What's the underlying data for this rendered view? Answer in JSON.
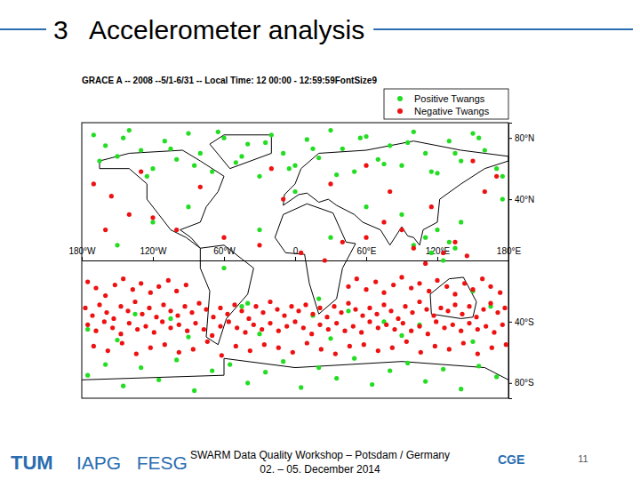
{
  "slide": {
    "title": "3   Accelerometer analysis",
    "logo_left": "TUM",
    "institutes": "IAPG   FESG",
    "footer": [
      "SWARM Data Quality Workshop – Potsdam / Germany",
      "02. – 05. December 2014"
    ],
    "logo_right": "CGE",
    "page": "11"
  },
  "chart_data": {
    "type": "scatter",
    "title": "GRACE A -- 2008 --5/1-6/31 -- Local Time: 12 00:00 - 12:59:59FontSize9",
    "xlim": [
      -180,
      180
    ],
    "ylim": [
      -90,
      90
    ],
    "xticks": [
      {
        "value": -180,
        "label": "180°W"
      },
      {
        "value": -120,
        "label": "120°W"
      },
      {
        "value": -60,
        "label": "60°W"
      },
      0,
      {
        "value": 60,
        "label": "60°E"
      },
      {
        "value": 120,
        "label": "120°E"
      },
      {
        "value": 180,
        "label": "180°E"
      }
    ],
    "yticks": [
      {
        "value": 80,
        "label": "80°N"
      },
      {
        "value": 40,
        "label": "40°N"
      },
      {
        "value": -40,
        "label": "40°S"
      },
      {
        "value": -80,
        "label": "80°S"
      }
    ],
    "legend": "top-right",
    "marker": "circle",
    "series": [
      {
        "name": "Positive Twangs",
        "color": "#22dd22",
        "x": [
          -170,
          -160,
          -150,
          -140,
          -130,
          -120,
          -110,
          -100,
          -90,
          -80,
          -70,
          -60,
          -50,
          -40,
          -30,
          -20,
          -10,
          0,
          10,
          20,
          30,
          40,
          50,
          60,
          70,
          80,
          90,
          100,
          110,
          120,
          130,
          140,
          150,
          160,
          170,
          -165,
          -145,
          -125,
          -105,
          -85,
          -65,
          -45,
          -25,
          -5,
          15,
          35,
          55,
          75,
          95,
          115,
          135,
          155,
          175,
          -175,
          -160,
          -145,
          -130,
          -115,
          -100,
          -85,
          -70,
          -55,
          -40,
          -25,
          -10,
          5,
          20,
          35,
          50,
          65,
          80,
          95,
          110,
          125,
          140,
          155,
          170,
          -150,
          -90,
          -30,
          30,
          90,
          150,
          -150,
          -120,
          -90,
          -60,
          -30,
          0,
          30,
          60,
          90,
          100,
          110,
          115,
          120,
          125,
          130,
          135,
          140,
          -135,
          -105,
          -45,
          15,
          45,
          75,
          105,
          165,
          -175,
          -40,
          20,
          150,
          175
        ],
        "values": [
          82,
          75,
          68,
          85,
          72,
          60,
          78,
          66,
          83,
          70,
          58,
          80,
          64,
          76,
          55,
          82,
          70,
          62,
          79,
          67,
          85,
          73,
          58,
          81,
          66,
          75,
          62,
          84,
          70,
          57,
          78,
          65,
          83,
          72,
          60,
          65,
          80,
          55,
          73,
          62,
          84,
          68,
          77,
          60,
          73,
          56,
          80,
          63,
          77,
          58,
          70,
          80,
          55,
          -75,
          -68,
          -82,
          -70,
          -78,
          -65,
          -85,
          -72,
          -68,
          -80,
          -73,
          -66,
          -83,
          -70,
          -77,
          -64,
          -81,
          -72,
          -67,
          -79,
          -71,
          -84,
          -69,
          -76,
          -52,
          -50,
          -48,
          -51,
          -49,
          -53,
          10,
          25,
          35,
          -5,
          20,
          45,
          15,
          35,
          30,
          10,
          15,
          5,
          20,
          0,
          12,
          8,
          25,
          -35,
          -38,
          -30,
          -36,
          -33,
          -40,
          -42,
          -30,
          -45,
          -28,
          -25,
          -20,
          40
        ]
      },
      {
        "name": "Negative Twangs",
        "color": "#ee1111",
        "x": [
          -177,
          -171,
          -165,
          -159,
          -153,
          -147,
          -141,
          -135,
          -129,
          -123,
          -117,
          -111,
          -105,
          -99,
          -93,
          -87,
          -81,
          -75,
          -69,
          -63,
          -57,
          -51,
          -45,
          -39,
          -33,
          -27,
          -21,
          -15,
          -9,
          -3,
          3,
          9,
          15,
          21,
          27,
          33,
          39,
          45,
          51,
          57,
          63,
          69,
          75,
          81,
          87,
          93,
          99,
          105,
          111,
          117,
          123,
          129,
          135,
          141,
          147,
          153,
          159,
          165,
          171,
          177,
          -175,
          -168,
          -161,
          -154,
          -147,
          -140,
          -133,
          -126,
          -119,
          -112,
          -105,
          -98,
          -91,
          -84,
          -77,
          -70,
          -63,
          -56,
          -49,
          -42,
          -35,
          -28,
          -21,
          -14,
          -7,
          0,
          7,
          14,
          21,
          28,
          35,
          42,
          49,
          56,
          63,
          70,
          77,
          84,
          91,
          98,
          105,
          112,
          119,
          126,
          133,
          140,
          147,
          154,
          161,
          168,
          175,
          45,
          52,
          60,
          68,
          75,
          83,
          90,
          98,
          105,
          113,
          120,
          128,
          135,
          143,
          150,
          158,
          165,
          173,
          -175,
          -168,
          -160,
          -152,
          -145,
          -137,
          -130,
          -122,
          -115,
          -107,
          -100,
          -92,
          -170,
          -158,
          -146,
          -134,
          -122,
          -110,
          -98,
          -86,
          -74,
          -62,
          -50,
          -38,
          -26,
          -14,
          -2,
          10,
          22,
          34,
          46,
          58,
          70,
          82,
          94,
          106,
          118,
          130,
          142,
          154,
          166,
          178,
          160,
          170,
          -170,
          -155,
          -140,
          -120,
          -100,
          -60,
          -30,
          5,
          25,
          40,
          60,
          75,
          90,
          100,
          110,
          125,
          135,
          145,
          60,
          -20,
          -80,
          -10,
          30,
          115,
          -130,
          80,
          150,
          -160
        ],
        "values": [
          -31,
          -36,
          -29,
          -34,
          -38,
          -30,
          -33,
          -27,
          -35,
          -31,
          -37,
          -29,
          -33,
          -36,
          -30,
          -34,
          -28,
          -32,
          -37,
          -31,
          -35,
          -29,
          -33,
          -38,
          -30,
          -34,
          -27,
          -32,
          -36,
          -30,
          -33,
          -29,
          -35,
          -31,
          -37,
          -30,
          -34,
          -28,
          -32,
          -36,
          -31,
          -35,
          -29,
          -33,
          -38,
          -30,
          -34,
          -27,
          -32,
          -36,
          -31,
          -33,
          -29,
          -35,
          -30,
          -37,
          -32,
          -28,
          -34,
          -31,
          -42,
          -46,
          -40,
          -44,
          -48,
          -41,
          -45,
          -43,
          -47,
          -40,
          -44,
          -42,
          -46,
          -41,
          -45,
          -49,
          -43,
          -40,
          -44,
          -47,
          -42,
          -45,
          -41,
          -46,
          -43,
          -40,
          -44,
          -48,
          -42,
          -45,
          -41,
          -46,
          -43,
          -47,
          -40,
          -44,
          -42,
          -45,
          -41,
          -46,
          -43,
          -48,
          -40,
          -44,
          -42,
          -46,
          -41,
          -45,
          -43,
          -47,
          -42,
          -17,
          -12,
          -19,
          -14,
          -21,
          -16,
          -11,
          -18,
          -15,
          -20,
          -13,
          -17,
          -22,
          -15,
          -19,
          -12,
          -17,
          -21,
          -14,
          -18,
          -23,
          -16,
          -12,
          -19,
          -15,
          -21,
          -17,
          -13,
          -20,
          -16,
          -56,
          -59,
          -54,
          -61,
          -57,
          -55,
          -60,
          -58,
          -53,
          -62,
          -56,
          -59,
          -55,
          -57,
          -60,
          -54,
          -58,
          -61,
          -56,
          -55,
          -59,
          -57,
          -53,
          -60,
          -56,
          -58,
          -54,
          -61,
          -57,
          -55,
          45,
          55,
          50,
          42,
          30,
          28,
          20,
          15,
          10,
          5,
          0,
          12,
          15,
          25,
          20,
          8,
          -2,
          5,
          12,
          3,
          62,
          60,
          48,
          40,
          50,
          35,
          58,
          45,
          65,
          20
        ]
      }
    ]
  }
}
